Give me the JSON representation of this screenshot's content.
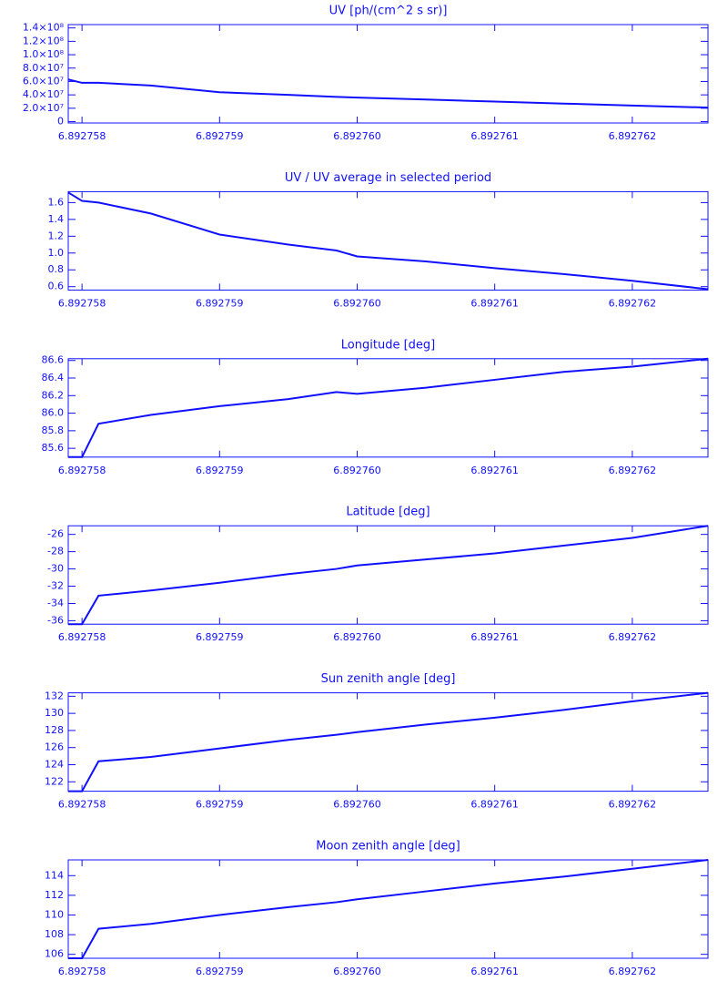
{
  "chart_data": [
    {
      "type": "line",
      "title": "UV [ph/(cm^2 s sr)]",
      "color": "#1010ff",
      "x": [
        6.8927579,
        6.892758,
        6.89275812,
        6.8927585,
        6.892759,
        6.8927595,
        6.89275985,
        6.89276,
        6.8927605,
        6.892761,
        6.8927615,
        6.892762,
        6.89276255
      ],
      "values": [
        63000000,
        58000000,
        58000000,
        54000000,
        44000000,
        40000000,
        37000000,
        36000000,
        33000000,
        30000000,
        27000000,
        24000000,
        21000000
      ],
      "xlim": [
        6.8927579,
        6.89276255
      ],
      "xticks": [
        6.892758,
        6.892759,
        {
          "value": 6.89276,
          "label": "6.892760"
        },
        6.892761,
        6.892762
      ],
      "ylim": [
        -2000000,
        145000000
      ],
      "yticks": [
        0,
        {
          "value": 20000000,
          "label": "2.0×10⁷"
        },
        {
          "value": 40000000,
          "label": "4.0×10⁷"
        },
        {
          "value": 60000000,
          "label": "6.0×10⁷"
        },
        {
          "value": 80000000,
          "label": "8.0×10⁷"
        },
        {
          "value": 100000000,
          "label": "1.0×10⁸"
        },
        {
          "value": 120000000,
          "label": "1.2×10⁸"
        },
        {
          "value": 140000000,
          "label": "1.4×10⁸"
        }
      ]
    },
    {
      "type": "line",
      "title": "UV / UV average in selected period",
      "color": "#1010ff",
      "x": [
        6.8927579,
        6.892758,
        6.89275812,
        6.8927585,
        6.892759,
        6.8927595,
        6.89275985,
        6.89276,
        6.8927605,
        6.892761,
        6.8927615,
        6.892762,
        6.89276255
      ],
      "values": [
        1.72,
        1.62,
        1.6,
        1.47,
        1.22,
        1.1,
        1.03,
        0.96,
        0.9,
        0.82,
        0.75,
        0.67,
        0.57
      ],
      "xlim": [
        6.8927579,
        6.89276255
      ],
      "xticks": [
        6.892758,
        6.892759,
        {
          "value": 6.89276,
          "label": "6.892760"
        },
        6.892761,
        6.892762
      ],
      "ylim": [
        0.56,
        1.73
      ],
      "yticks": [
        0.6,
        0.8,
        {
          "value": 1,
          "label": "1.0"
        },
        1.2,
        1.4,
        1.6
      ]
    },
    {
      "type": "line",
      "title": "Longitude [deg]",
      "color": "#1010ff",
      "x": [
        6.8927579,
        6.892758,
        6.89275812,
        6.8927585,
        6.892759,
        6.8927595,
        6.89275985,
        6.89276,
        6.8927605,
        6.892761,
        6.8927615,
        6.892762,
        6.89276255
      ],
      "values": [
        85.5,
        85.5,
        85.88,
        85.98,
        86.08,
        86.16,
        86.24,
        86.22,
        86.29,
        86.38,
        86.47,
        86.53,
        86.62
      ],
      "xlim": [
        6.8927579,
        6.89276255
      ],
      "xticks": [
        6.892758,
        6.892759,
        {
          "value": 6.89276,
          "label": "6.892760"
        },
        6.892761,
        6.892762
      ],
      "ylim": [
        85.5,
        86.62
      ],
      "yticks": [
        85.6,
        85.8,
        {
          "value": 86,
          "label": "86.0"
        },
        86.2,
        86.4,
        86.6
      ]
    },
    {
      "type": "line",
      "title": "Latitude [deg]",
      "color": "#1010ff",
      "x": [
        6.8927579,
        6.892758,
        6.89275812,
        6.8927585,
        6.892759,
        6.8927595,
        6.89275985,
        6.89276,
        6.8927605,
        6.892761,
        6.8927615,
        6.892762,
        6.89276255
      ],
      "values": [
        -36.4,
        -36.4,
        -33.1,
        -32.5,
        -31.6,
        -30.6,
        -30,
        -29.6,
        -28.9,
        -28.2,
        -27.3,
        -26.4,
        -25
      ],
      "xlim": [
        6.8927579,
        6.89276255
      ],
      "xticks": [
        6.892758,
        6.892759,
        {
          "value": 6.89276,
          "label": "6.892760"
        },
        6.892761,
        6.892762
      ],
      "ylim": [
        -36.4,
        -25
      ],
      "yticks": [
        -36,
        -34,
        -32,
        -30,
        -28,
        -26
      ]
    },
    {
      "type": "line",
      "title": "Sun zenith angle [deg]",
      "color": "#1010ff",
      "x": [
        6.8927579,
        6.892758,
        6.89275812,
        6.8927585,
        6.892759,
        6.8927595,
        6.89275985,
        6.89276,
        6.8927605,
        6.892761,
        6.8927615,
        6.892762,
        6.89276255
      ],
      "values": [
        120.9,
        120.9,
        124.4,
        124.9,
        125.9,
        126.9,
        127.5,
        127.8,
        128.7,
        129.5,
        130.4,
        131.4,
        132.4
      ],
      "xlim": [
        6.8927579,
        6.89276255
      ],
      "xticks": [
        6.892758,
        6.892759,
        {
          "value": 6.89276,
          "label": "6.892760"
        },
        6.892761,
        6.892762
      ],
      "ylim": [
        120.9,
        132.4
      ],
      "yticks": [
        122,
        124,
        126,
        128,
        130,
        132
      ]
    },
    {
      "type": "line",
      "title": "Moon zenith angle [deg]",
      "color": "#1010ff",
      "x": [
        6.8927579,
        6.892758,
        6.89275812,
        6.8927585,
        6.892759,
        6.8927595,
        6.89275985,
        6.89276,
        6.8927605,
        6.892761,
        6.8927615,
        6.892762,
        6.89276255
      ],
      "values": [
        105.6,
        105.6,
        108.6,
        109.1,
        110,
        110.8,
        111.3,
        111.6,
        112.4,
        113.2,
        113.9,
        114.7,
        115.6
      ],
      "xlim": [
        6.8927579,
        6.89276255
      ],
      "xticks": [
        6.892758,
        6.892759,
        {
          "value": 6.89276,
          "label": "6.892760"
        },
        6.892761,
        6.892762
      ],
      "ylim": [
        105.6,
        115.6
      ],
      "yticks": [
        106,
        108,
        110,
        112,
        114
      ]
    }
  ]
}
